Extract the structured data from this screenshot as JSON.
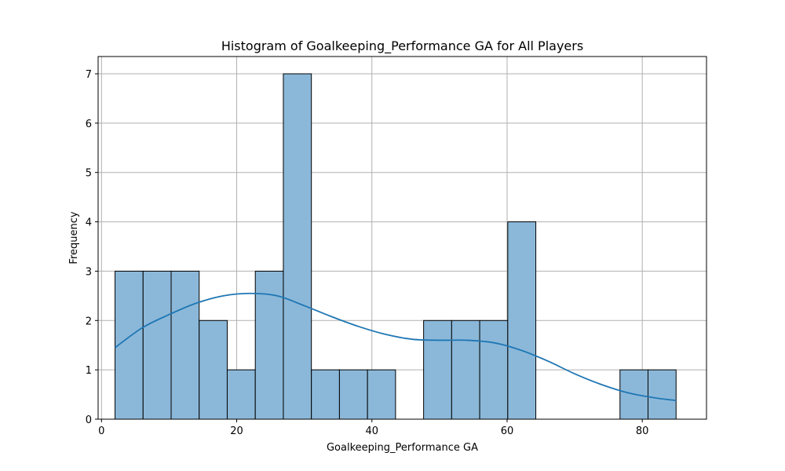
{
  "chart_data": {
    "type": "bar",
    "title": "Histogram of Goalkeeping_Performance GA for All Players",
    "xlabel": "Goalkeeping_Performance GA",
    "ylabel": "Frequency",
    "xlim": [
      -0.5,
      89.5
    ],
    "ylim": [
      0,
      7.35
    ],
    "x_ticks": [
      0,
      20,
      40,
      60,
      80
    ],
    "y_ticks": [
      0,
      1,
      2,
      3,
      4,
      5,
      6,
      7
    ],
    "grid": true,
    "bins": [
      {
        "start": 2.0,
        "end": 6.15,
        "count": 3
      },
      {
        "start": 6.15,
        "end": 10.3,
        "count": 3
      },
      {
        "start": 10.3,
        "end": 14.45,
        "count": 3
      },
      {
        "start": 14.45,
        "end": 18.6,
        "count": 2
      },
      {
        "start": 18.6,
        "end": 22.75,
        "count": 1
      },
      {
        "start": 22.75,
        "end": 26.9,
        "count": 3
      },
      {
        "start": 26.9,
        "end": 31.05,
        "count": 7
      },
      {
        "start": 31.05,
        "end": 35.2,
        "count": 1
      },
      {
        "start": 35.2,
        "end": 39.35,
        "count": 1
      },
      {
        "start": 39.35,
        "end": 43.5,
        "count": 1
      },
      {
        "start": 43.5,
        "end": 47.65,
        "count": 0
      },
      {
        "start": 47.65,
        "end": 51.8,
        "count": 2
      },
      {
        "start": 51.8,
        "end": 55.95,
        "count": 2
      },
      {
        "start": 55.95,
        "end": 60.1,
        "count": 2
      },
      {
        "start": 60.1,
        "end": 64.25,
        "count": 4
      },
      {
        "start": 64.25,
        "end": 68.4,
        "count": 0
      },
      {
        "start": 68.4,
        "end": 72.55,
        "count": 0
      },
      {
        "start": 72.55,
        "end": 76.7,
        "count": 0
      },
      {
        "start": 76.7,
        "end": 80.85,
        "count": 1
      },
      {
        "start": 80.85,
        "end": 85.0,
        "count": 1
      }
    ],
    "kde": {
      "x": [
        2,
        6,
        10,
        14,
        18,
        22,
        26,
        30,
        34,
        38,
        42,
        46,
        50,
        54,
        58,
        62,
        66,
        70,
        74,
        78,
        82,
        85
      ],
      "y": [
        1.45,
        1.85,
        2.12,
        2.35,
        2.5,
        2.55,
        2.5,
        2.3,
        2.08,
        1.88,
        1.72,
        1.62,
        1.6,
        1.6,
        1.55,
        1.4,
        1.18,
        0.92,
        0.7,
        0.53,
        0.43,
        0.38
      ]
    },
    "colors": {
      "bar_fill": "#8bb8d9",
      "bar_edge": "#000000",
      "kde_line": "#1f77b4",
      "grid": "#b0b0b0"
    }
  }
}
